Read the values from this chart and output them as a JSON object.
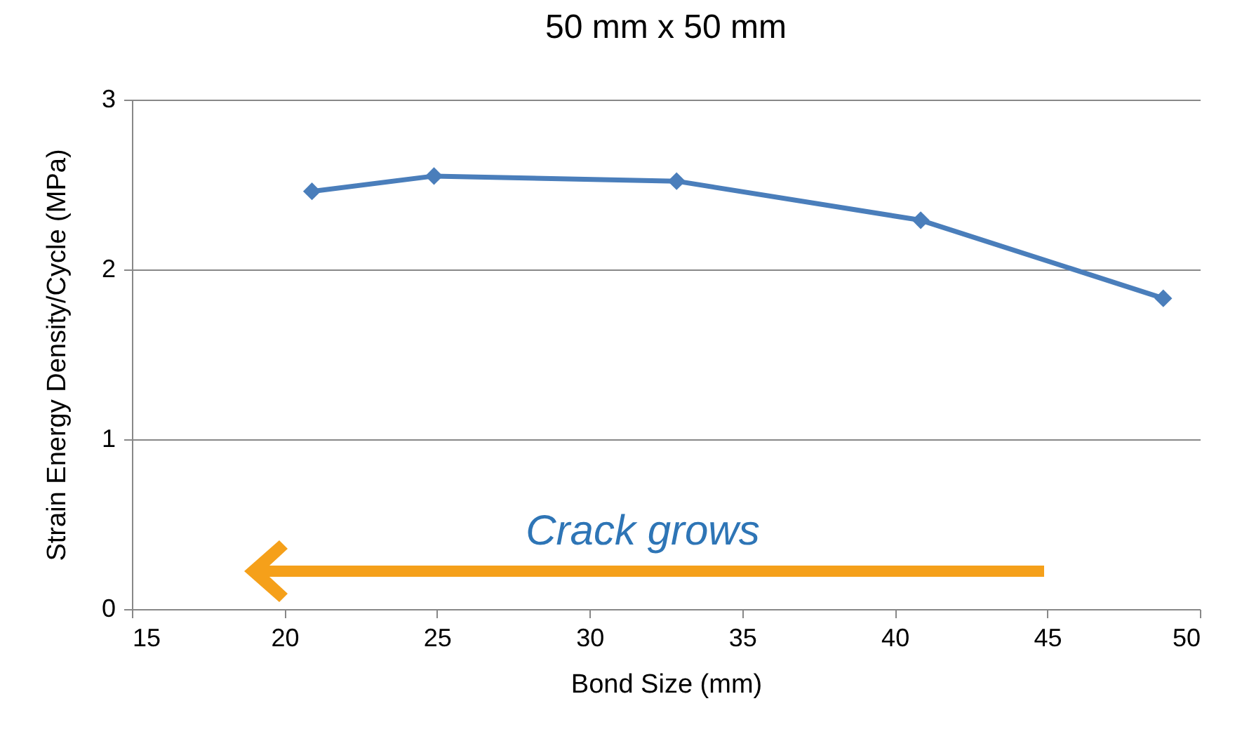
{
  "chart_data": {
    "type": "line",
    "title": "50 mm x 50 mm",
    "xlabel": "Bond Size (mm)",
    "ylabel": "Strain Energy Density/Cycle  (MPa)",
    "x": [
      20.9,
      24.9,
      32.85,
      40.85,
      48.8
    ],
    "series": [
      {
        "color": "#4a7ebb",
        "values": [
          2.46,
          2.55,
          2.52,
          2.29,
          1.83
        ]
      }
    ],
    "xlim": [
      15,
      50
    ],
    "xticks": [
      15,
      20,
      25,
      30,
      35,
      40,
      45,
      50
    ],
    "ylim": [
      0,
      3
    ],
    "yticks": [
      0,
      1,
      2,
      3
    ],
    "grid": "y",
    "marker": "diamond",
    "line_style": "solid",
    "annotations": [
      "Crack grows"
    ]
  }
}
